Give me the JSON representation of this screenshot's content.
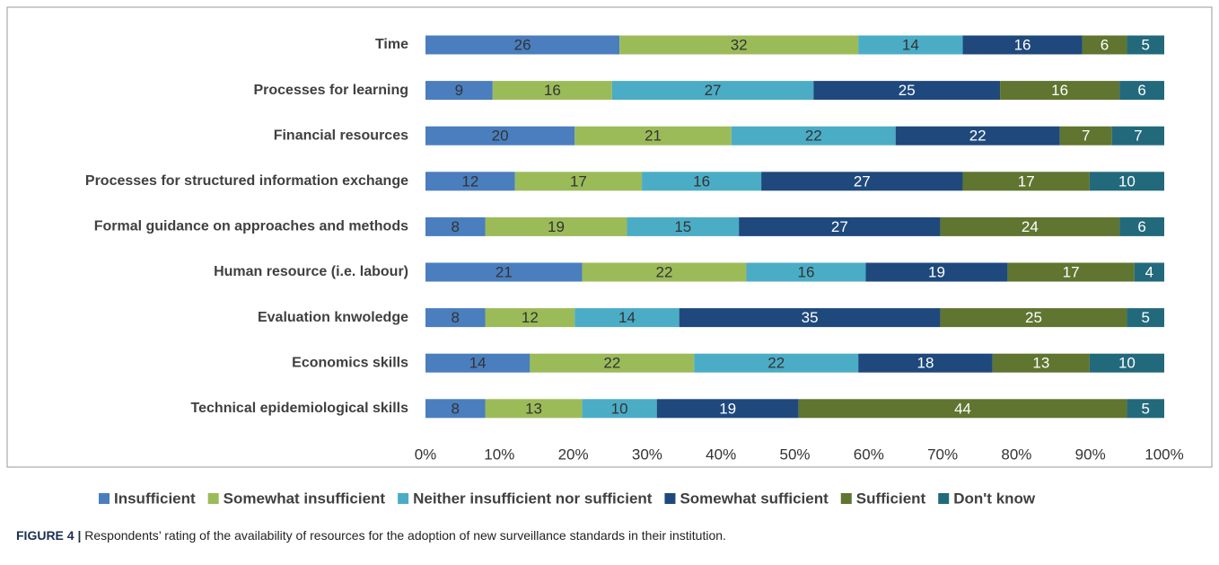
{
  "chart_data": {
    "type": "bar",
    "orientation": "horizontal",
    "stacked": "percent",
    "categories": [
      "Time",
      "Processes for learning",
      "Financial resources",
      "Processes for structured information exchange",
      "Formal guidance on approaches and methods",
      "Human resource (i.e. labour)",
      "Evaluation knwoledge",
      "Economics skills",
      "Technical epidemiological skills"
    ],
    "series": [
      {
        "name": "Insufficient",
        "color": "#4a7ebf",
        "label_color": "#333333",
        "values": [
          26,
          9,
          20,
          12,
          8,
          21,
          8,
          14,
          8
        ]
      },
      {
        "name": "Somewhat insufficient",
        "color": "#9bbb59",
        "label_color": "#333333",
        "values": [
          32,
          16,
          21,
          17,
          19,
          22,
          12,
          22,
          13
        ]
      },
      {
        "name": "Neither insufficient nor sufficient",
        "color": "#4bacc6",
        "label_color": "#333333",
        "values": [
          14,
          27,
          22,
          16,
          15,
          16,
          14,
          22,
          10
        ]
      },
      {
        "name": "Somewhat sufficient",
        "color": "#1f497d",
        "label_color": "#ffffff",
        "values": [
          16,
          25,
          22,
          27,
          27,
          19,
          35,
          18,
          19
        ]
      },
      {
        "name": "Sufficient",
        "color": "#5f7530",
        "label_color": "#ffffff",
        "values": [
          6,
          16,
          7,
          17,
          24,
          17,
          25,
          13,
          44
        ]
      },
      {
        "name": "Don't know",
        "color": "#23697c",
        "label_color": "#ffffff",
        "values": [
          5,
          6,
          7,
          10,
          6,
          4,
          5,
          10,
          5
        ]
      }
    ],
    "xlim": [
      0,
      100
    ],
    "xticks": [
      {
        "value": 0,
        "label": "0%"
      },
      {
        "value": 10,
        "label": "10%"
      },
      {
        "value": 20,
        "label": "20%"
      },
      {
        "value": 30,
        "label": "30%"
      },
      {
        "value": 40,
        "label": "40%"
      },
      {
        "value": 50,
        "label": "50%"
      },
      {
        "value": 60,
        "label": "60%"
      },
      {
        "value": 70,
        "label": "70%"
      },
      {
        "value": 80,
        "label": "80%"
      },
      {
        "value": 90,
        "label": "90%"
      },
      {
        "value": 100,
        "label": "100%"
      }
    ],
    "legend": "bottom"
  },
  "caption": {
    "label": "FIGURE 4 |",
    "text": "Respondents’ rating of the availability of resources for the adoption of new surveillance standards in their institution."
  }
}
